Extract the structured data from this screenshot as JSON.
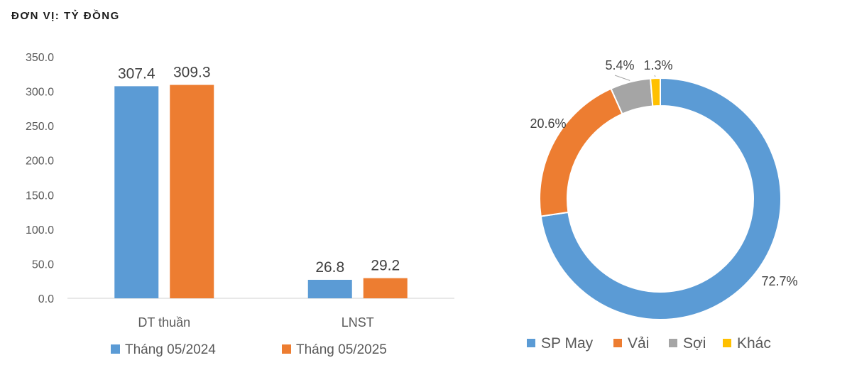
{
  "unit_label": "ĐƠN VỊ: TỶ ĐỒNG",
  "chart_data": [
    {
      "type": "bar",
      "categories": [
        "DT thuần",
        "LNST"
      ],
      "series": [
        {
          "name": "Tháng 05/2024",
          "values": [
            307.4,
            26.8
          ],
          "color": "#5b9bd5"
        },
        {
          "name": "Tháng 05/2025",
          "values": [
            309.3,
            29.2
          ],
          "color": "#ed7d31"
        }
      ],
      "data_labels": [
        [
          "307.4",
          "26.8"
        ],
        [
          "309.3",
          "29.2"
        ]
      ],
      "ylim": [
        0,
        350
      ],
      "yticks": [
        "0.0",
        "50.0",
        "100.0",
        "150.0",
        "200.0",
        "250.0",
        "300.0",
        "350.0"
      ],
      "grid": false,
      "legend": "bottom",
      "title": "",
      "xlabel": "",
      "ylabel": ""
    },
    {
      "type": "pie",
      "variant": "donut",
      "labels": [
        "SP May",
        "Vải",
        "Sợi",
        "Khác"
      ],
      "values": [
        72.7,
        20.6,
        5.4,
        1.3
      ],
      "value_labels": [
        "72.7%",
        "20.6%",
        "5.4%",
        "1.3%"
      ],
      "colors": [
        "#5b9bd5",
        "#ed7d31",
        "#a5a5a5",
        "#ffc000"
      ],
      "legend": "bottom",
      "title": ""
    }
  ]
}
